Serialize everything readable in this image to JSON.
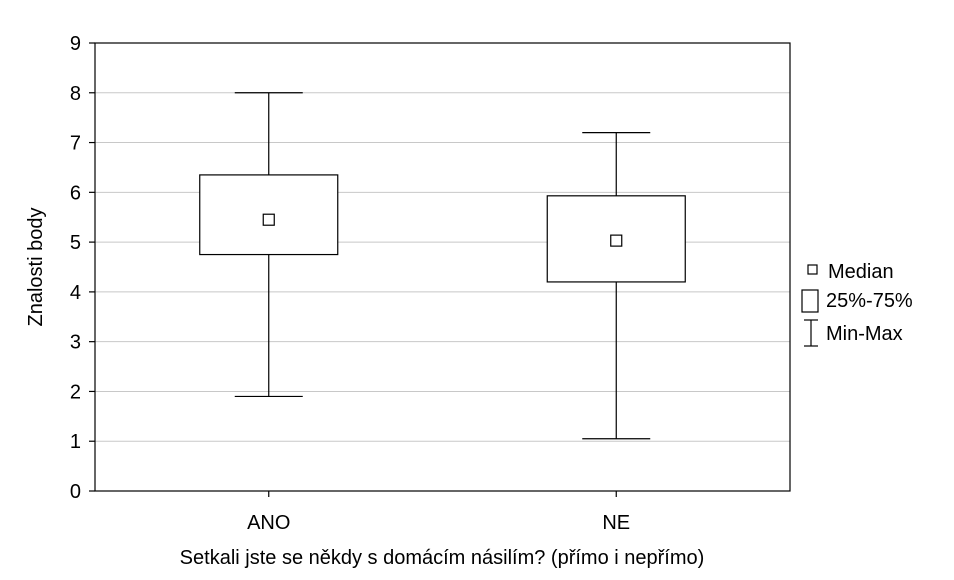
{
  "chart_data": {
    "type": "boxplot",
    "title": "",
    "xlabel": "Setkali jste se někdy s domácím násilím? (přímo i nepřímo)",
    "ylabel": "Znalosti body",
    "ylim": [
      0,
      9
    ],
    "yticks": [
      "0",
      "1",
      "2",
      "3",
      "4",
      "5",
      "6",
      "7",
      "8",
      "9"
    ],
    "grid": true,
    "legend_position": "right",
    "categories": [
      "ANO",
      "NE"
    ],
    "boxes": [
      {
        "category": "ANO",
        "min": 1.9,
        "q1": 4.75,
        "median": 5.45,
        "q3": 6.35,
        "max": 8.0
      },
      {
        "category": "NE",
        "min": 1.05,
        "q1": 4.2,
        "median": 5.03,
        "q3": 5.93,
        "max": 7.2
      }
    ],
    "legend": [
      {
        "symbol": "median",
        "label": "Median"
      },
      {
        "symbol": "box",
        "label": "25%-75%"
      },
      {
        "symbol": "whisker",
        "label": "Min-Max"
      }
    ]
  }
}
